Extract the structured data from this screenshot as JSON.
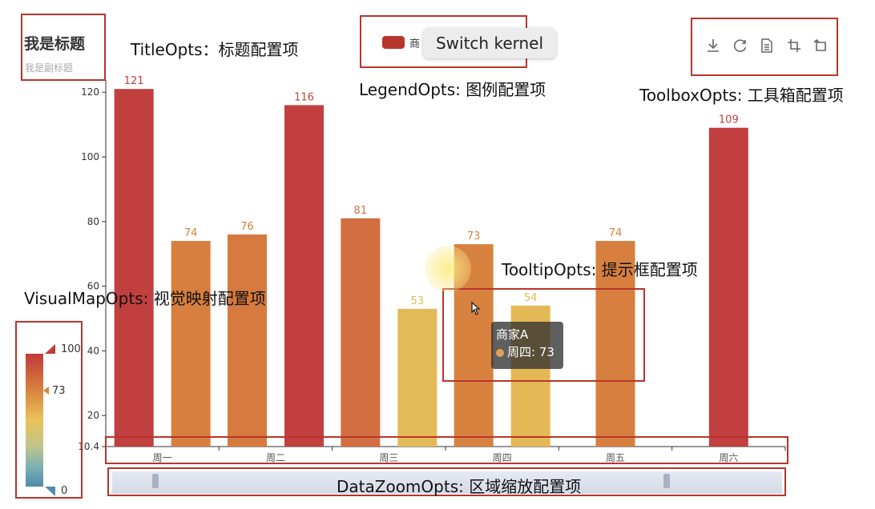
{
  "title": {
    "main": "我是标题",
    "sub": "我是副标题"
  },
  "annotations": {
    "title_opts": "TitleOpts：标题配置项",
    "legend_opts": "LegendOpts: 图例配置项",
    "toolbox_opts": "ToolboxOpts: 工具箱配置项",
    "tooltip_opts": "TooltipOpts: 提示框配置项",
    "visualmap_opts": "VisualMapOpts: 视觉映射配置项",
    "datazoom_opts": "DataZoomOpts: 区域缩放配置项"
  },
  "legend": {
    "label": "商家A",
    "visible_text": "商"
  },
  "kernel_popup": {
    "text": "Switch kernel"
  },
  "toolbox": {
    "icons": [
      "download-icon",
      "refresh-icon",
      "data-view-icon",
      "zoom-icon",
      "zoom-reset-icon"
    ]
  },
  "tooltip": {
    "series": "商家A",
    "row": "周四: 73"
  },
  "visual_map": {
    "max": "100",
    "current": "73",
    "min": "0"
  },
  "colors": {
    "accent": "#b8352c",
    "bar_high": "#c23f3f",
    "bar_low": "#e6c35a"
  },
  "chart_data": {
    "type": "bar",
    "categories": [
      "周一",
      "周二",
      "周三",
      "周四",
      "周五",
      "周六"
    ],
    "series": [
      {
        "name": "商家A",
        "values": [
          121,
          76,
          81,
          73,
          74,
          109
        ]
      },
      {
        "name": "",
        "values": [
          74,
          116,
          53,
          54,
          null,
          null
        ]
      }
    ],
    "y_ticks": [
      "120",
      "100",
      "80",
      "60",
      "40",
      "20",
      "10.4"
    ],
    "ylim": [
      10.4,
      125
    ]
  }
}
